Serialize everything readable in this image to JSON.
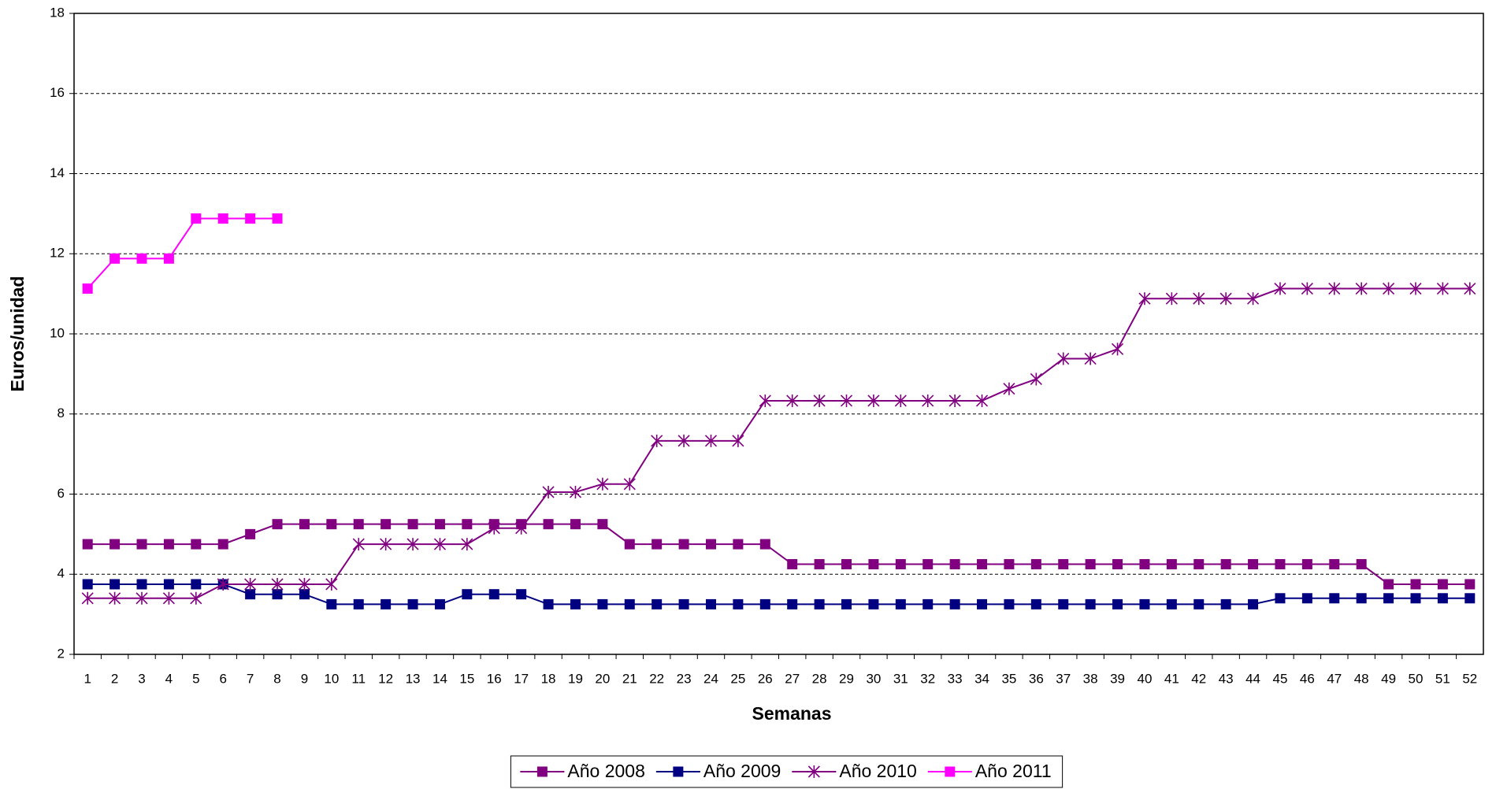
{
  "chart_data": {
    "type": "line",
    "x_label": "Semanas",
    "y_label": "Euros/unidad",
    "categories": [
      "1",
      "2",
      "3",
      "4",
      "5",
      "6",
      "7",
      "8",
      "9",
      "10",
      "11",
      "12",
      "13",
      "14",
      "15",
      "16",
      "17",
      "18",
      "19",
      "20",
      "21",
      "22",
      "23",
      "24",
      "25",
      "26",
      "27",
      "28",
      "29",
      "30",
      "31",
      "32",
      "33",
      "34",
      "35",
      "36",
      "37",
      "38",
      "39",
      "40",
      "41",
      "42",
      "43",
      "44",
      "45",
      "46",
      "47",
      "48",
      "49",
      "50",
      "51",
      "52"
    ],
    "ylim": [
      2,
      18
    ],
    "yticks": [
      2,
      4,
      6,
      8,
      10,
      12,
      14,
      16,
      18
    ],
    "grid": true,
    "legend": "bottom",
    "series": [
      {
        "name": "Año 2008",
        "color": "#800080",
        "marker": "square",
        "values": [
          4.75,
          4.75,
          4.75,
          4.75,
          4.75,
          4.75,
          5.0,
          5.25,
          5.25,
          5.25,
          5.25,
          5.25,
          5.25,
          5.25,
          5.25,
          5.25,
          5.25,
          5.25,
          5.25,
          5.25,
          4.75,
          4.75,
          4.75,
          4.75,
          4.75,
          4.75,
          4.25,
          4.25,
          4.25,
          4.25,
          4.25,
          4.25,
          4.25,
          4.25,
          4.25,
          4.25,
          4.25,
          4.25,
          4.25,
          4.25,
          4.25,
          4.25,
          4.25,
          4.25,
          4.25,
          4.25,
          4.25,
          4.25,
          3.75,
          3.75,
          3.75,
          3.75
        ]
      },
      {
        "name": "Año 2009",
        "color": "#000080",
        "marker": "square",
        "values": [
          3.75,
          3.75,
          3.75,
          3.75,
          3.75,
          3.75,
          3.5,
          3.5,
          3.5,
          3.25,
          3.25,
          3.25,
          3.25,
          3.25,
          3.5,
          3.5,
          3.5,
          3.25,
          3.25,
          3.25,
          3.25,
          3.25,
          3.25,
          3.25,
          3.25,
          3.25,
          3.25,
          3.25,
          3.25,
          3.25,
          3.25,
          3.25,
          3.25,
          3.25,
          3.25,
          3.25,
          3.25,
          3.25,
          3.25,
          3.25,
          3.25,
          3.25,
          3.25,
          3.25,
          3.4,
          3.4,
          3.4,
          3.4,
          3.4,
          3.4,
          3.4,
          3.4
        ]
      },
      {
        "name": "Año 2010",
        "color": "#800080",
        "marker": "asterisk",
        "values": [
          3.4,
          3.4,
          3.4,
          3.4,
          3.4,
          3.75,
          3.75,
          3.75,
          3.75,
          3.75,
          4.75,
          4.75,
          4.75,
          4.75,
          4.75,
          5.15,
          5.15,
          6.05,
          6.05,
          6.25,
          6.25,
          7.33,
          7.33,
          7.33,
          7.33,
          8.33,
          8.33,
          8.33,
          8.33,
          8.33,
          8.33,
          8.33,
          8.33,
          8.33,
          8.63,
          8.87,
          9.38,
          9.38,
          9.62,
          10.88,
          10.88,
          10.88,
          10.88,
          10.88,
          11.13,
          11.13,
          11.13,
          11.13,
          11.13,
          11.13,
          11.13,
          11.13
        ]
      },
      {
        "name": "Año 2011",
        "color": "#FF00FF",
        "marker": "square",
        "values": [
          11.13,
          11.88,
          11.88,
          11.88,
          12.88,
          12.88,
          12.88,
          12.88,
          null,
          null,
          null,
          null,
          null,
          null,
          null,
          null,
          null,
          null,
          null,
          null,
          null,
          null,
          null,
          null,
          null,
          null,
          null,
          null,
          null,
          null,
          null,
          null,
          null,
          null,
          null,
          null,
          null,
          null,
          null,
          null,
          null,
          null,
          null,
          null,
          null,
          null,
          null,
          null,
          null,
          null,
          null,
          null
        ]
      }
    ]
  }
}
